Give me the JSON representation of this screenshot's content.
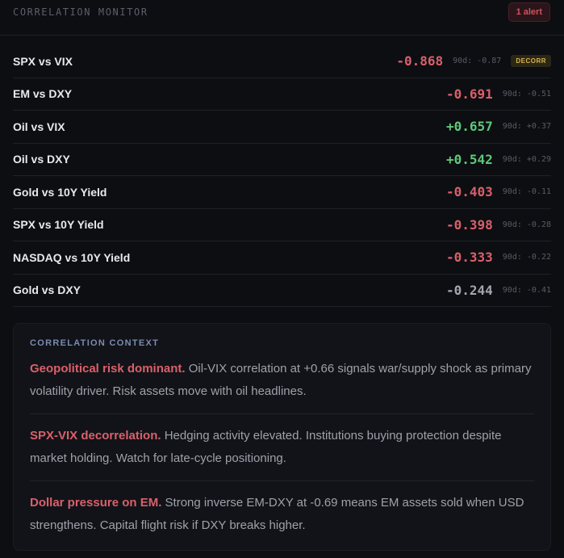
{
  "header": {
    "title": "CORRELATION MONITOR",
    "alert_badge": "1 alert"
  },
  "rows": [
    {
      "pair": "SPX vs VIX",
      "value": "-0.868",
      "hist": "90d: -0.87",
      "tone": "neg",
      "badge": "DECORR"
    },
    {
      "pair": "EM vs DXY",
      "value": "-0.691",
      "hist": "90d: -0.51",
      "tone": "neg"
    },
    {
      "pair": "Oil vs VIX",
      "value": "+0.657",
      "hist": "90d: +0.37",
      "tone": "pos"
    },
    {
      "pair": "Oil vs DXY",
      "value": "+0.542",
      "hist": "90d: +0.29",
      "tone": "pos"
    },
    {
      "pair": "Gold vs 10Y Yield",
      "value": "-0.403",
      "hist": "90d: -0.11",
      "tone": "neg"
    },
    {
      "pair": "SPX vs 10Y Yield",
      "value": "-0.398",
      "hist": "90d: -0.28",
      "tone": "neg"
    },
    {
      "pair": "NASDAQ vs 10Y Yield",
      "value": "-0.333",
      "hist": "90d: -0.22",
      "tone": "neg"
    },
    {
      "pair": "Gold vs DXY",
      "value": "-0.244",
      "hist": "90d: -0.41",
      "tone": "neutral"
    }
  ],
  "context": {
    "title": "CORRELATION CONTEXT",
    "items": [
      {
        "lead": "Geopolitical risk dominant.",
        "body": " Oil-VIX correlation at +0.66 signals war/supply shock as primary volatility driver. Risk assets move with oil headlines."
      },
      {
        "lead": "SPX-VIX decorrelation.",
        "body": " Hedging activity elevated. Institutions buying protection despite market holding. Watch for late-cycle positioning."
      },
      {
        "lead": "Dollar pressure on EM.",
        "body": " Strong inverse EM-DXY at -0.69 means EM assets sold when USD strengthens. Capital flight risk if DXY breaks higher."
      }
    ]
  },
  "colors": {
    "negative": "#d9606b",
    "positive": "#5dc97a",
    "neutral": "#a2a6b0",
    "decorr_badge": "#d9b350",
    "context_title": "#7a8bb0"
  }
}
